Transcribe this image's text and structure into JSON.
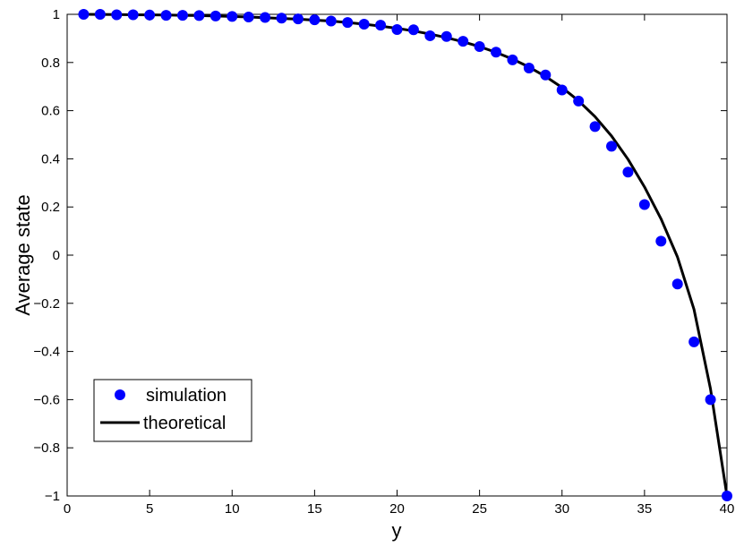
{
  "chart_data": {
    "type": "scatter",
    "xlabel": "y",
    "ylabel": "Average state",
    "xlim": [
      0,
      40
    ],
    "ylim": [
      -1,
      1
    ],
    "xticks": [
      0,
      5,
      10,
      15,
      20,
      25,
      30,
      35,
      40
    ],
    "yticks": [
      -1,
      -0.8,
      -0.6,
      -0.4,
      -0.2,
      0,
      0.2,
      0.4,
      0.6,
      0.8,
      1
    ],
    "xtick_labels": [
      "0",
      "5",
      "10",
      "15",
      "20",
      "25",
      "30",
      "35",
      "40"
    ],
    "ytick_labels": [
      "−1",
      "−0.8",
      "−0.6",
      "−0.4",
      "−0.2",
      "0",
      "0.2",
      "0.4",
      "0.6",
      "0.8",
      "1"
    ],
    "grid": false,
    "legend_position": "bottom-left",
    "series": [
      {
        "name": "simulation",
        "kind": "markers",
        "color": "#0000ff",
        "x": [
          1,
          2,
          3,
          4,
          5,
          6,
          7,
          8,
          9,
          10,
          11,
          12,
          13,
          14,
          15,
          16,
          17,
          18,
          19,
          20,
          21,
          22,
          23,
          24,
          25,
          26,
          27,
          28,
          29,
          30,
          31,
          32,
          33,
          34,
          35,
          36,
          37,
          38,
          39,
          40
        ],
        "y": [
          1.0,
          1.0,
          0.998,
          0.998,
          0.997,
          0.996,
          0.996,
          0.995,
          0.993,
          0.991,
          0.989,
          0.987,
          0.984,
          0.981,
          0.977,
          0.972,
          0.966,
          0.959,
          0.955,
          0.937,
          0.936,
          0.911,
          0.908,
          0.888,
          0.866,
          0.843,
          0.811,
          0.777,
          0.748,
          0.686,
          0.64,
          0.534,
          0.452,
          0.345,
          0.21,
          0.058,
          -0.12,
          -0.36,
          -0.6,
          -1.0
        ]
      },
      {
        "name": "theoretical",
        "kind": "line",
        "color": "#000000",
        "x": [
          1,
          2,
          3,
          4,
          5,
          6,
          7,
          8,
          9,
          10,
          11,
          12,
          13,
          14,
          15,
          16,
          17,
          18,
          19,
          20,
          21,
          22,
          23,
          24,
          25,
          26,
          27,
          28,
          29,
          30,
          31,
          32,
          33,
          34,
          35,
          36,
          37,
          38,
          39,
          40
        ],
        "y": [
          1.0,
          0.9995,
          0.999,
          0.998,
          0.9975,
          0.997,
          0.996,
          0.995,
          0.993,
          0.991,
          0.989,
          0.986,
          0.983,
          0.98,
          0.976,
          0.972,
          0.966,
          0.959,
          0.951,
          0.942,
          0.931,
          0.918,
          0.903,
          0.886,
          0.866,
          0.842,
          0.814,
          0.781,
          0.742,
          0.696,
          0.641,
          0.575,
          0.495,
          0.398,
          0.283,
          0.151,
          -0.008,
          -0.225,
          -0.555,
          -1.0
        ]
      }
    ]
  },
  "legend": {
    "items": [
      {
        "label": "simulation",
        "icon": "filled-circle-marker"
      },
      {
        "label": "theoretical",
        "icon": "line-marker"
      }
    ]
  }
}
